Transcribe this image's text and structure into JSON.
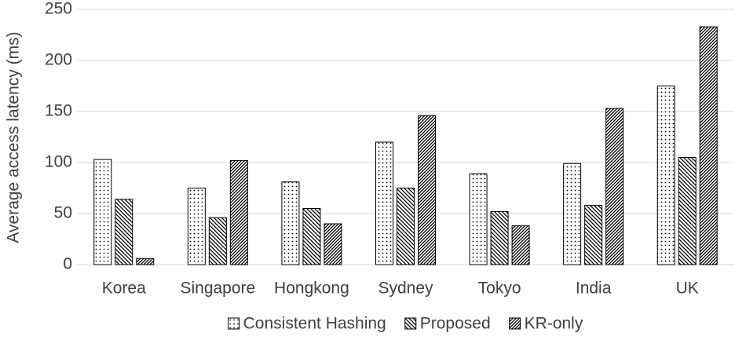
{
  "chart_data": {
    "type": "bar",
    "y_label": "Average access latency (ms)",
    "categories": [
      "Korea",
      "Singapore",
      "Hongkong",
      "Sydney",
      "Tokyo",
      "India",
      "UK"
    ],
    "series": [
      {
        "name": "Consistent Hashing",
        "color": "#000000",
        "pattern": "dots",
        "values": [
          103,
          75,
          81,
          120,
          89,
          99,
          175
        ]
      },
      {
        "name": "Proposed",
        "color": "#000000",
        "pattern": "back-diagonal",
        "values": [
          64,
          46,
          55,
          75,
          52,
          58,
          105
        ]
      },
      {
        "name": "KR-only",
        "color": "#000000",
        "pattern": "forward-diagonal",
        "values": [
          6,
          102,
          40,
          146,
          38,
          153,
          233
        ]
      }
    ],
    "ylim": [
      0,
      250
    ],
    "yticks": [
      0,
      50,
      100,
      150,
      200,
      250
    ],
    "grid": true,
    "legend": "bottom"
  }
}
